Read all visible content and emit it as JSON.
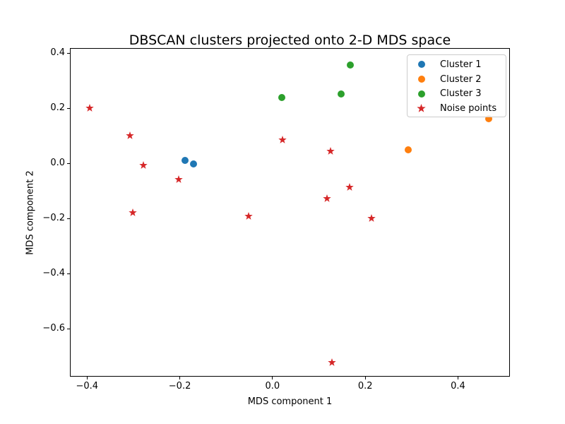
{
  "chart_data": {
    "type": "scatter",
    "title": "DBSCAN clusters projected onto 2-D MDS space",
    "xlabel": "MDS component 1",
    "ylabel": "MDS component 2",
    "xlim": [
      -0.437,
      0.512
    ],
    "ylim": [
      -0.774,
      0.4185
    ],
    "grid": false,
    "legend_position": "upper right",
    "xticks": [
      {
        "value": -0.4,
        "label": "−0.4"
      },
      {
        "value": -0.2,
        "label": "−0.2"
      },
      {
        "value": 0.0,
        "label": "0.0"
      },
      {
        "value": 0.2,
        "label": "0.2"
      },
      {
        "value": 0.4,
        "label": "0.4"
      }
    ],
    "yticks": [
      {
        "value": 0.4,
        "label": "0.4"
      },
      {
        "value": 0.2,
        "label": "0.2"
      },
      {
        "value": 0.0,
        "label": "0.0"
      },
      {
        "value": -0.2,
        "label": "−0.2"
      },
      {
        "value": -0.4,
        "label": "−0.4"
      },
      {
        "value": -0.6,
        "label": "−0.6"
      }
    ],
    "series": [
      {
        "name": "Cluster 1",
        "marker": "circle",
        "color": "#1f77b4",
        "points": [
          [
            -0.188,
            0.012
          ],
          [
            -0.17,
            -0.003
          ]
        ]
      },
      {
        "name": "Cluster 2",
        "marker": "circle",
        "color": "#ff7f0e",
        "points": [
          [
            0.292,
            0.049
          ],
          [
            0.466,
            0.161
          ]
        ]
      },
      {
        "name": "Cluster 3",
        "marker": "circle",
        "color": "#2ca02c",
        "points": [
          [
            0.02,
            0.24
          ],
          [
            0.148,
            0.252
          ],
          [
            0.168,
            0.356
          ]
        ]
      },
      {
        "name": "Noise points",
        "marker": "star",
        "color": "#d62728",
        "points": [
          [
            -0.394,
            0.203
          ],
          [
            -0.307,
            0.104
          ],
          [
            -0.279,
            -0.005
          ],
          [
            -0.203,
            -0.056
          ],
          [
            -0.302,
            -0.177
          ],
          [
            -0.051,
            -0.19
          ],
          [
            0.021,
            0.088
          ],
          [
            0.125,
            0.047
          ],
          [
            0.166,
            -0.084
          ],
          [
            0.117,
            -0.125
          ],
          [
            0.214,
            -0.196
          ],
          [
            0.128,
            -0.719
          ]
        ]
      }
    ]
  }
}
